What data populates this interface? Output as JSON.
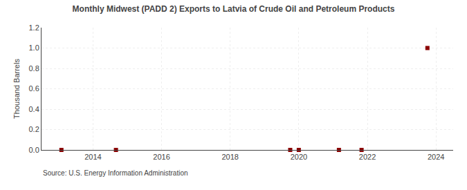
{
  "chart_data": {
    "type": "scatter",
    "title": "Monthly Midwest (PADD 2) Exports to Latvia of Crude Oil and Petroleum Products",
    "ylabel": "Thousand Barrels",
    "annotations": [
      "Source: U.S. Energy Information Administration"
    ],
    "x": [
      2013.08,
      2014.67,
      2019.75,
      2020.0,
      2021.17,
      2021.83,
      2023.75
    ],
    "values": [
      0.0,
      0.0,
      0.0,
      0.0,
      0.0,
      0.0,
      1.0
    ],
    "color": "#8b0000",
    "marker": "square",
    "xlim": [
      2012.5,
      2024.5
    ],
    "ylim": [
      0.0,
      1.2
    ],
    "xticks": [
      2014,
      2016,
      2018,
      2020,
      2022,
      2024
    ],
    "yticks": [
      {
        "value": 0.0,
        "label": "0.0"
      },
      0.2,
      0.4,
      0.6,
      0.8,
      {
        "value": 1.0,
        "label": "1.0"
      },
      1.2
    ],
    "grid": true
  }
}
